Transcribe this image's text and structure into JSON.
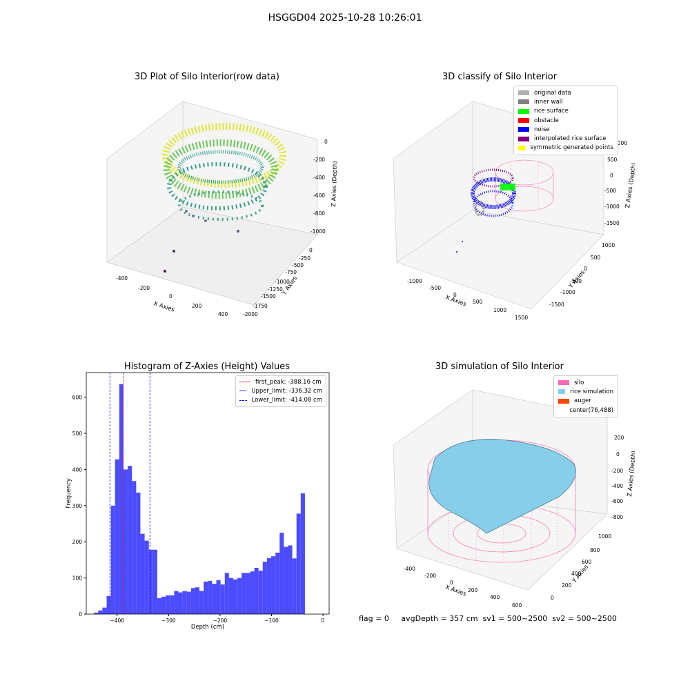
{
  "suptitle": "HSGGD04 2025-10-28 10:26:01",
  "panel1": {
    "title": "3D Plot of Silo Interior(row data)",
    "xlabel": "X Axies",
    "ylabel": "Y Axies",
    "zlabel": "Z Axies (Depth)",
    "xticks": [
      "-400",
      "-200",
      "0",
      "200",
      "400"
    ],
    "yticks": [
      "0",
      "-250",
      "-500",
      "-750",
      "-1000",
      "-1250",
      "-1500",
      "-1750",
      "-2000"
    ],
    "zticks": [
      "0",
      "-200",
      "-400",
      "-600",
      "-800",
      "-1000"
    ]
  },
  "panel2": {
    "title": "3D classify of Silo Interior",
    "xlabel": "X Axies",
    "ylabel": "Y Axies",
    "zlabel": "Z Axies (Depth)",
    "xticks": [
      "-1000",
      "-500",
      "0",
      "500",
      "1000",
      "1500"
    ],
    "yticks": [
      "1000",
      "500",
      "0",
      "-500",
      "-1000",
      "-1500"
    ],
    "zticks": [
      "1000",
      "500",
      "0",
      "-500",
      "-1000",
      "-1500"
    ],
    "legend": [
      {
        "label": "original data",
        "color": "#b0b0b0"
      },
      {
        "label": "inner wall",
        "color": "#808080"
      },
      {
        "label": "rice surface",
        "color": "#00ff00"
      },
      {
        "label": "obstacle",
        "color": "#ff0000"
      },
      {
        "label": "noise",
        "color": "#0000ff"
      },
      {
        "label": "interpolated rice surface",
        "color": "#800080"
      },
      {
        "label": "symmetric generated points",
        "color": "#ffff00"
      }
    ]
  },
  "panel3": {
    "title": "Histogram of Z-Axies (Height) Values",
    "legend": [
      {
        "label": "first_peak: -388.16 cm",
        "color": "#ff0000"
      },
      {
        "label": "Upper_limit: -336.32 cm",
        "color": "#0000ff"
      },
      {
        "label": "Lower_limit: -414.08 cm",
        "color": "#0000ff"
      }
    ]
  },
  "panel4": {
    "title": "3D simulation of Silo Interior",
    "xlabel": "X Axies",
    "ylabel": "Y Axies",
    "zlabel": "Z Axies (Depth)",
    "xticks": [
      "-400",
      "-200",
      "0",
      "200",
      "400",
      "600"
    ],
    "yticks": [
      "1000",
      "800",
      "600",
      "400",
      "200",
      "0"
    ],
    "zticks": [
      "200",
      "0",
      "-200",
      "-400",
      "-600",
      "-800"
    ],
    "legend": [
      {
        "label": "silo",
        "color": "#ff69b4"
      },
      {
        "label": "rice simulation",
        "color": "#87ceeb"
      },
      {
        "label": "auger",
        "color": "#ff4500"
      },
      {
        "label": "center(76,488)",
        "color": ""
      }
    ]
  },
  "footer": "flag = 0     avgDepth = 357 cm  sv1 = 500~2500  sv2 = 500~2500",
  "chart_data": {
    "type": "bar",
    "title": "Histogram of Z-Axies (Height) Values",
    "xlabel": "Depth (cm)",
    "ylabel": "Frequency",
    "xlim": [
      -460,
      12
    ],
    "ylim": [
      0,
      668
    ],
    "xticks": [
      -400,
      -300,
      -200,
      -100,
      0
    ],
    "yticks": [
      0,
      100,
      200,
      300,
      400,
      500,
      600
    ],
    "bin_width": 8.2,
    "bin_start": -445,
    "values": [
      4,
      10,
      18,
      50,
      300,
      428,
      636,
      400,
      410,
      368,
      336,
      222,
      203,
      178,
      178,
      44,
      48,
      52,
      52,
      64,
      60,
      64,
      62,
      72,
      74,
      64,
      90,
      92,
      84,
      94,
      82,
      114,
      100,
      96,
      100,
      114,
      114,
      118,
      128,
      120,
      145,
      155,
      160,
      170,
      225,
      186,
      190,
      154,
      278,
      334
    ],
    "vlines": [
      {
        "name": "first_peak",
        "x": -388.16,
        "color": "#ff0000"
      },
      {
        "name": "Upper_limit",
        "x": -336.32,
        "color": "#0000ff"
      },
      {
        "name": "Lower_limit",
        "x": -414.08,
        "color": "#0000ff"
      }
    ],
    "bar_color": "#4c4cff"
  }
}
